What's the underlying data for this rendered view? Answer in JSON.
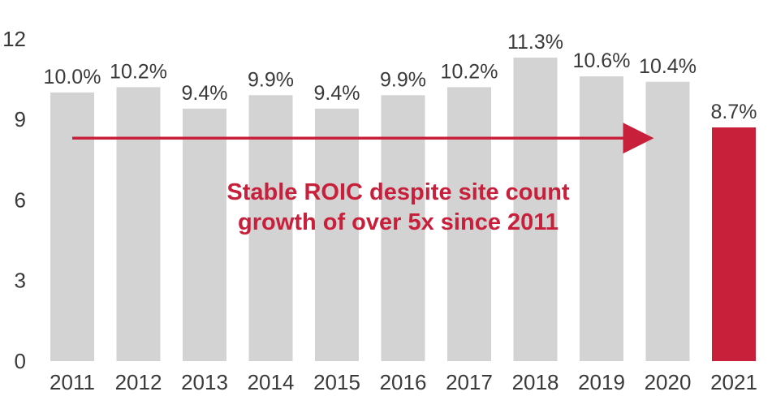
{
  "chart_data": {
    "type": "bar",
    "categories": [
      "2011",
      "2012",
      "2013",
      "2014",
      "2015",
      "2016",
      "2017",
      "2018",
      "2019",
      "2020",
      "2021"
    ],
    "values": [
      10.0,
      10.2,
      9.4,
      9.9,
      9.4,
      9.9,
      10.2,
      11.3,
      10.6,
      10.4,
      8.7
    ],
    "data_labels": [
      "10.0%",
      "10.2%",
      "9.4%",
      "9.9%",
      "9.4%",
      "9.9%",
      "10.2%",
      "11.3%",
      "10.6%",
      "10.4%",
      "8.7%"
    ],
    "highlight_index": 10,
    "ylim": [
      0,
      12
    ],
    "yticks": [
      "0",
      "3",
      "6",
      "9",
      "12"
    ],
    "grid": false,
    "legend": "none",
    "annotation": {
      "line1": "Stable ROIC despite site count",
      "line2": "growth of over 5x since 2011",
      "arrow_level": 8.3,
      "arrow_from_index": 0,
      "arrow_to_index": 9
    },
    "colors": {
      "bar": "#d3d3d4",
      "highlight": "#c8203b",
      "accent": "#c8203b",
      "text": "#3a3a3a"
    }
  }
}
